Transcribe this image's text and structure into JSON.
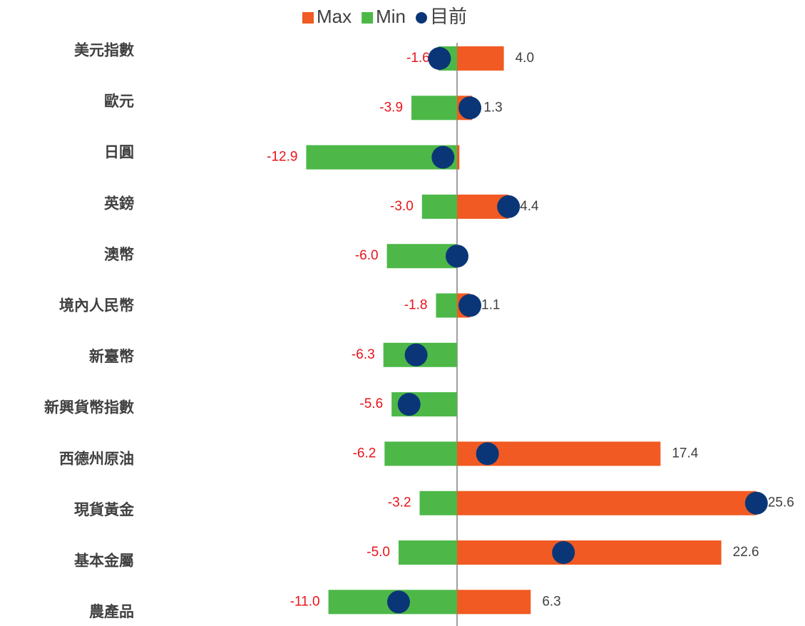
{
  "chart_data": {
    "type": "range_bar",
    "categories": [
      "美元指數",
      "歐元",
      "日圓",
      "英鎊",
      "澳幣",
      "境內人民幣",
      "新臺幣",
      "新興貨幣指數",
      "西德州原油",
      "現貨黃金",
      "基本金屬",
      "農產品"
    ],
    "series": [
      {
        "name": "Max",
        "color": "#f15a22",
        "values": [
          4.0,
          1.3,
          0.2,
          4.4,
          0,
          1.1,
          0,
          0,
          17.4,
          25.6,
          22.6,
          6.3
        ],
        "value_labels": [
          "4.0",
          "1.3",
          null,
          "4.4",
          null,
          "1.1",
          null,
          null,
          "17.4",
          "25.6",
          "22.6",
          "6.3"
        ]
      },
      {
        "name": "Min",
        "color": "#4db848",
        "values": [
          -1.6,
          -3.9,
          -12.9,
          -3.0,
          -6.0,
          -1.8,
          -6.3,
          -5.6,
          -6.2,
          -3.2,
          -5.0,
          -11.0
        ],
        "value_labels": [
          "-1.6",
          "-3.9",
          "-12.9",
          "-3.0",
          "-6.0",
          "-1.8",
          "-6.3",
          "-5.6",
          "-6.2",
          "-3.2",
          "-5.0",
          "-11.0"
        ]
      },
      {
        "name": "目前",
        "color": "#0a3677",
        "values": [
          -1.5,
          1.1,
          -1.2,
          4.4,
          0.0,
          1.1,
          -3.5,
          -4.1,
          2.6,
          25.6,
          9.1,
          -5.0
        ]
      }
    ],
    "xlim": [
      -14,
      28
    ],
    "legend": "top"
  }
}
